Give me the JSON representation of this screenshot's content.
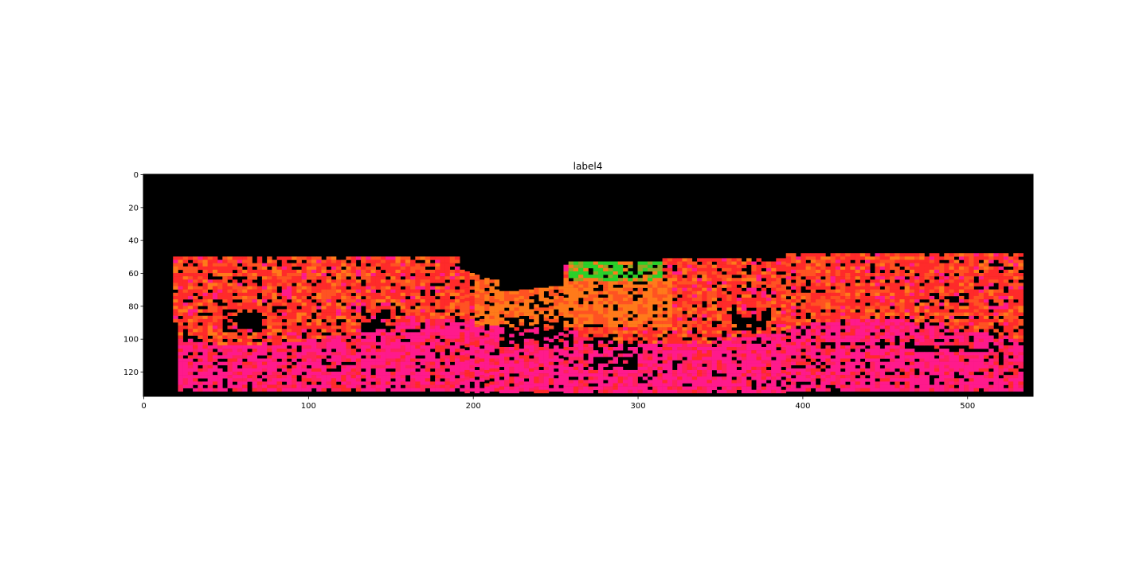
{
  "chart_data": {
    "type": "heatmap",
    "title": "label4",
    "xlabel": "",
    "ylabel": "",
    "xlim": [
      0,
      540
    ],
    "ylim": [
      135,
      0
    ],
    "x_ticks": [
      0,
      100,
      200,
      300,
      400,
      500
    ],
    "y_ticks": [
      0,
      20,
      40,
      60,
      80,
      100,
      120
    ],
    "grid": false,
    "image_shape": [
      135,
      540
    ],
    "background_color": "#000000",
    "colors": {
      "red": "#ff2a2a",
      "magenta": "#ff1a8c",
      "orange": "#ff7a1a",
      "green": "#2ad12a"
    },
    "regions": [
      {
        "name": "empty-sky",
        "rows": [
          0,
          45
        ],
        "color": "black"
      },
      {
        "name": "left-wall",
        "rows": [
          50,
          90
        ],
        "cols": [
          20,
          190
        ],
        "color": "red-orange"
      },
      {
        "name": "center-road",
        "rows": [
          60,
          95
        ],
        "cols": [
          190,
          310
        ],
        "color": "orange"
      },
      {
        "name": "center-foliage",
        "rows": [
          53,
          65
        ],
        "cols": [
          258,
          310
        ],
        "color": "green"
      },
      {
        "name": "right-wall",
        "rows": [
          48,
          100
        ],
        "cols": [
          310,
          530
        ],
        "color": "red-orange"
      },
      {
        "name": "ground",
        "rows": [
          95,
          132
        ],
        "cols": [
          20,
          530
        ],
        "color": "magenta"
      }
    ]
  }
}
